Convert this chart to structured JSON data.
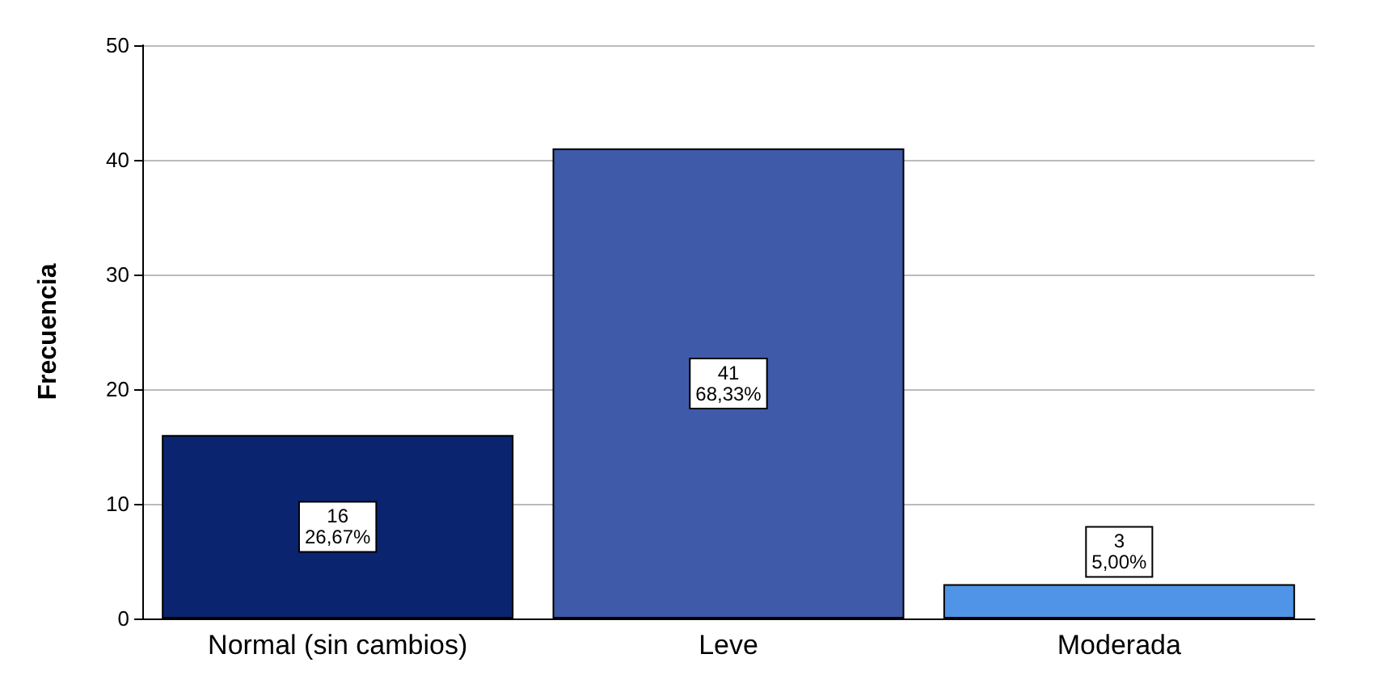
{
  "chart_data": {
    "type": "bar",
    "ylabel": "Frecuencia",
    "categories": [
      "Normal (sin cambios)",
      "Leve",
      "Moderada"
    ],
    "values": [
      16,
      41,
      3
    ],
    "colors": [
      "#0a2470",
      "#3f5aa8",
      "#4f94e6"
    ],
    "value_labels": [
      "16\n26,67%",
      "41\n68,33%",
      "3\n5,00%"
    ],
    "ylim": [
      0,
      50
    ],
    "yticks": [
      0,
      10,
      20,
      30,
      40,
      50
    ],
    "grid": "y"
  }
}
